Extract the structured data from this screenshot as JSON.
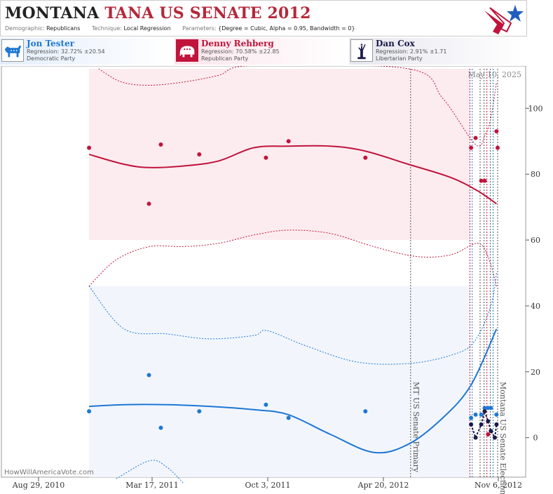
{
  "header": {
    "title_state": "MONTANA",
    "title_rest": "TANA US SENATE 2012",
    "meta": [
      {
        "key": "Demographic:",
        "value": "Republicans"
      },
      {
        "key": "Technique:",
        "value": "Local Regression"
      },
      {
        "key": "Parameters:",
        "value": "{Degree = Cubic, Alpha = 0.95, Bandwidth = 0}"
      }
    ]
  },
  "candidates": [
    {
      "name": "Jon Tester",
      "regression": "Regression: 32.72% ±20.54",
      "party": "Democratic Party",
      "color": "#1f77d4",
      "icon": "donkey-icon",
      "bg": "#e7f0fb"
    },
    {
      "name": "Denny Rehberg",
      "regression": "Regression: 70.58% ±22.85",
      "party": "Republican Party",
      "color": "#c0143c",
      "icon": "elephant-icon",
      "bg": "#fbe6ec"
    },
    {
      "name": "Dan Cox",
      "regression": "Regression: 2.91% ±1.71",
      "party": "Libertarian Party",
      "color": "#1a1a4a",
      "icon": "statue-of-liberty-icon",
      "bg": "#ececf3"
    }
  ],
  "footer": {
    "credit": "HowWillAmericaVote.com"
  },
  "chart_data": {
    "type": "scatter",
    "date_label": "May 10, 2025",
    "x_ticks": [
      "Aug 29, 2010",
      "Mar 17, 2011",
      "Oct 3, 2011",
      "Apr 20, 2012",
      "Nov 6, 2012"
    ],
    "x_range": [
      "2010-08-29",
      "2012-11-06"
    ],
    "ylim": [
      -12,
      112
    ],
    "y_ticks": [
      0,
      20,
      40,
      60,
      80,
      100
    ],
    "grid": false,
    "annotations": [
      {
        "label": "MT US Senate Primary",
        "date": "2012-06-05"
      },
      {
        "label": "Montana US Senate Election",
        "date": "2012-11-06"
      }
    ],
    "series": [
      {
        "name": "Jon Tester",
        "color": "#1f77d4",
        "points": [
          {
            "x": "2010-11-14",
            "y": 8
          },
          {
            "x": "2011-02-28",
            "y": 19
          },
          {
            "x": "2011-03-21",
            "y": 3
          },
          {
            "x": "2011-05-28",
            "y": 8
          },
          {
            "x": "2011-09-23",
            "y": 10
          },
          {
            "x": "2011-11-02",
            "y": 6
          },
          {
            "x": "2012-03-17",
            "y": 8
          },
          {
            "x": "2012-09-20",
            "y": 6
          },
          {
            "x": "2012-09-28",
            "y": 7
          },
          {
            "x": "2012-10-08",
            "y": 7
          },
          {
            "x": "2012-10-14",
            "y": 9
          },
          {
            "x": "2012-10-20",
            "y": 9
          },
          {
            "x": "2012-10-25",
            "y": 9
          },
          {
            "x": "2012-11-04",
            "y": 7
          }
        ],
        "trend": [
          {
            "x": "2010-11-14",
            "y": 9.5
          },
          {
            "x": "2011-01-15",
            "y": 10
          },
          {
            "x": "2011-04-01",
            "y": 10
          },
          {
            "x": "2011-06-15",
            "y": 9.5
          },
          {
            "x": "2011-09-01",
            "y": 8.5
          },
          {
            "x": "2011-11-01",
            "y": 7
          },
          {
            "x": "2012-01-15",
            "y": 1
          },
          {
            "x": "2012-04-01",
            "y": -4.5
          },
          {
            "x": "2012-06-01",
            "y": -2
          },
          {
            "x": "2012-08-01",
            "y": 6
          },
          {
            "x": "2012-09-20",
            "y": 16
          },
          {
            "x": "2012-11-04",
            "y": 33
          }
        ],
        "upper": [
          {
            "x": "2010-11-14",
            "y": 46
          },
          {
            "x": "2011-01-15",
            "y": 33
          },
          {
            "x": "2011-04-01",
            "y": 31.5
          },
          {
            "x": "2011-06-15",
            "y": 30
          },
          {
            "x": "2011-09-01",
            "y": 31
          },
          {
            "x": "2011-09-25",
            "y": 32.5
          },
          {
            "x": "2011-12-01",
            "y": 28
          },
          {
            "x": "2012-03-01",
            "y": 23
          },
          {
            "x": "2012-06-01",
            "y": 22.5
          },
          {
            "x": "2012-08-15",
            "y": 25
          },
          {
            "x": "2012-09-25",
            "y": 29
          },
          {
            "x": "2012-10-25",
            "y": 40
          },
          {
            "x": "2012-11-04",
            "y": 50
          }
        ],
        "lower": [
          {
            "x": "2011-01-01",
            "y": -12.5
          },
          {
            "x": "2011-03-01",
            "y": -7
          },
          {
            "x": "2011-04-01",
            "y": -9
          },
          {
            "x": "2011-05-01",
            "y": -14
          }
        ]
      },
      {
        "name": "Denny Rehberg",
        "color": "#c0143c",
        "points": [
          {
            "x": "2010-11-14",
            "y": 88
          },
          {
            "x": "2011-02-28",
            "y": 71
          },
          {
            "x": "2011-03-21",
            "y": 89
          },
          {
            "x": "2011-05-28",
            "y": 86
          },
          {
            "x": "2011-09-23",
            "y": 85
          },
          {
            "x": "2011-11-02",
            "y": 90
          },
          {
            "x": "2012-03-17",
            "y": 85
          },
          {
            "x": "2012-09-20",
            "y": 88
          },
          {
            "x": "2012-09-28",
            "y": 91
          },
          {
            "x": "2012-10-08",
            "y": 78
          },
          {
            "x": "2012-10-14",
            "y": 78
          },
          {
            "x": "2012-10-20",
            "y": 1
          },
          {
            "x": "2012-11-04",
            "y": 93
          },
          {
            "x": "2012-11-06",
            "y": 88
          }
        ],
        "trend": [
          {
            "x": "2010-11-14",
            "y": 86
          },
          {
            "x": "2011-01-15",
            "y": 83
          },
          {
            "x": "2011-03-01",
            "y": 82
          },
          {
            "x": "2011-05-01",
            "y": 82.5
          },
          {
            "x": "2011-07-01",
            "y": 84
          },
          {
            "x": "2011-09-01",
            "y": 88
          },
          {
            "x": "2011-11-01",
            "y": 88.5
          },
          {
            "x": "2012-01-15",
            "y": 88.5
          },
          {
            "x": "2012-03-17",
            "y": 87
          },
          {
            "x": "2012-06-01",
            "y": 83
          },
          {
            "x": "2012-08-15",
            "y": 79
          },
          {
            "x": "2012-10-01",
            "y": 75
          },
          {
            "x": "2012-11-04",
            "y": 71
          }
        ],
        "upper": [
          {
            "x": "2010-12-01",
            "y": 112
          },
          {
            "x": "2011-01-10",
            "y": 108
          },
          {
            "x": "2011-03-01",
            "y": 107
          },
          {
            "x": "2011-05-01",
            "y": 108
          },
          {
            "x": "2011-07-01",
            "y": 110
          },
          {
            "x": "2011-09-01",
            "y": 113
          },
          {
            "x": "2012-06-01",
            "y": 112
          },
          {
            "x": "2012-08-01",
            "y": 103
          },
          {
            "x": "2012-09-28",
            "y": 89
          },
          {
            "x": "2012-10-15",
            "y": 92
          },
          {
            "x": "2012-10-25",
            "y": 97
          },
          {
            "x": "2012-11-04",
            "y": 108
          }
        ],
        "lower": [
          {
            "x": "2010-11-14",
            "y": 46
          },
          {
            "x": "2011-01-01",
            "y": 54
          },
          {
            "x": "2011-03-01",
            "y": 58
          },
          {
            "x": "2011-05-01",
            "y": 58
          },
          {
            "x": "2011-07-01",
            "y": 59
          },
          {
            "x": "2011-09-01",
            "y": 61.5
          },
          {
            "x": "2011-11-01",
            "y": 63
          },
          {
            "x": "2012-01-15",
            "y": 62
          },
          {
            "x": "2012-04-01",
            "y": 58
          },
          {
            "x": "2012-06-15",
            "y": 55
          },
          {
            "x": "2012-08-15",
            "y": 55.5
          },
          {
            "x": "2012-10-01",
            "y": 59
          },
          {
            "x": "2012-10-20",
            "y": 55
          },
          {
            "x": "2012-11-04",
            "y": 46
          }
        ]
      },
      {
        "name": "Dan Cox",
        "color": "#1a1a4a",
        "points": [
          {
            "x": "2012-09-20",
            "y": 4
          },
          {
            "x": "2012-09-28",
            "y": 0
          },
          {
            "x": "2012-10-08",
            "y": 4
          },
          {
            "x": "2012-10-14",
            "y": 8
          },
          {
            "x": "2012-10-20",
            "y": 5
          },
          {
            "x": "2012-10-25",
            "y": 2
          },
          {
            "x": "2012-11-01",
            "y": 0
          },
          {
            "x": "2012-11-04",
            "y": 4
          }
        ]
      }
    ],
    "poll_lines": [
      {
        "date": "2012-09-18",
        "color": "#c0143c"
      },
      {
        "date": "2012-09-22",
        "color": "#1f77d4"
      },
      {
        "date": "2012-10-06",
        "color": "#555"
      },
      {
        "date": "2012-10-13",
        "color": "#555"
      },
      {
        "date": "2012-10-18",
        "color": "#c0143c"
      },
      {
        "date": "2012-10-24",
        "color": "#555"
      },
      {
        "date": "2012-10-29",
        "color": "#1f77d4"
      }
    ]
  }
}
